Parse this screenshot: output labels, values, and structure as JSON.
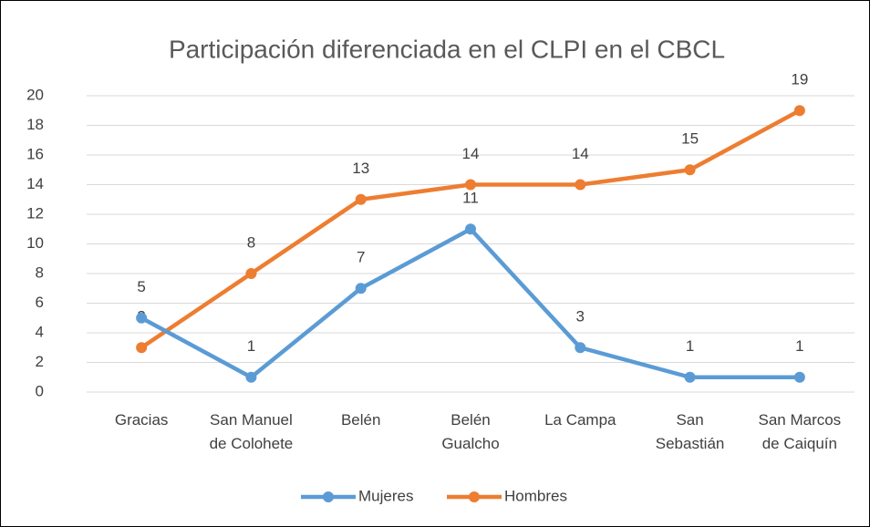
{
  "chart_data": {
    "type": "line",
    "title": "Participación diferenciada en el CLPI en el CBCL",
    "categories": [
      "Gracias",
      "San Manuel\nde Colohete",
      "Belén",
      "Belén\nGualcho",
      "La Campa",
      "San\nSebastián",
      "San Marcos\nde Caiquín"
    ],
    "series": [
      {
        "name": "Mujeres",
        "color": "#5b9bd5",
        "values": [
          5,
          1,
          7,
          11,
          3,
          1,
          1
        ]
      },
      {
        "name": "Hombres",
        "color": "#ed7d31",
        "values": [
          3,
          8,
          13,
          14,
          14,
          15,
          19
        ]
      }
    ],
    "ylim": [
      0,
      20
    ],
    "yticks": [
      0,
      2,
      4,
      6,
      8,
      10,
      12,
      14,
      16,
      18,
      20
    ],
    "grid": true,
    "legend": "bottom"
  }
}
